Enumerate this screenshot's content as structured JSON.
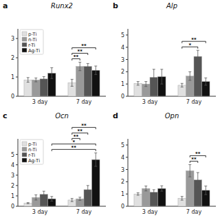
{
  "chart_data": [
    {
      "type": "bar",
      "title": "Runx2",
      "panel_label": "a",
      "categories": [
        "3 day",
        "7 day"
      ],
      "series": [
        {
          "name": "p-Ti",
          "color": "#e0e0e0",
          "values": [
            0.85,
            0.7
          ],
          "errors": [
            0.12,
            0.18
          ]
        },
        {
          "name": "n-Ti",
          "color": "#999999",
          "values": [
            0.85,
            1.55
          ],
          "errors": [
            0.1,
            0.22
          ]
        },
        {
          "name": "r-Ti",
          "color": "#555555",
          "values": [
            0.9,
            1.55
          ],
          "errors": [
            0.12,
            0.15
          ]
        },
        {
          "name": "Ag-Ti",
          "color": "#111111",
          "values": [
            1.2,
            1.35
          ],
          "errors": [
            0.28,
            0.22
          ]
        }
      ],
      "ylim": [
        0,
        3.5
      ],
      "yticks": [
        0,
        1,
        2,
        3
      ],
      "grid": false,
      "legend": "upper left",
      "annotations": [
        {
          "text": "**",
          "from": {
            "series": 0,
            "category": 1
          },
          "to": {
            "series": 1,
            "category": 1
          }
        },
        {
          "text": "**",
          "from": {
            "series": 0,
            "category": 1
          },
          "to": {
            "series": 2,
            "category": 1
          }
        },
        {
          "text": "**",
          "from": {
            "series": 0,
            "category": 1
          },
          "to": {
            "series": 3,
            "category": 1
          }
        }
      ]
    },
    {
      "type": "bar",
      "title": "Alp",
      "panel_label": "b",
      "categories": [
        "3 day",
        "7 day"
      ],
      "series": [
        {
          "name": "p-Ti",
          "color": "#e0e0e0",
          "values": [
            1.05,
            0.9
          ],
          "errors": [
            0.15,
            0.15
          ]
        },
        {
          "name": "n-Ti",
          "color": "#999999",
          "values": [
            1.0,
            1.65
          ],
          "errors": [
            0.2,
            0.35
          ]
        },
        {
          "name": "r-Ti",
          "color": "#555555",
          "values": [
            1.55,
            3.25
          ],
          "errors": [
            0.65,
            0.5
          ]
        },
        {
          "name": "Ag-Ti",
          "color": "#111111",
          "values": [
            1.6,
            1.2
          ],
          "errors": [
            0.6,
            0.3
          ]
        }
      ],
      "ylim": [
        0,
        5.5
      ],
      "yticks": [
        0,
        1,
        2,
        3,
        4,
        5
      ],
      "grid": false,
      "annotations": [
        {
          "text": "*",
          "from": {
            "series": 0,
            "category": 1
          },
          "to": {
            "series": 2,
            "category": 1
          }
        },
        {
          "text": "**",
          "from": {
            "series": 0,
            "category": 1
          },
          "to": {
            "series": 3,
            "category": 1
          }
        }
      ]
    },
    {
      "type": "bar",
      "title": "Ocn",
      "panel_label": "c",
      "categories": [
        "3 day",
        "7 day"
      ],
      "series": [
        {
          "name": "p-Ti",
          "color": "#e0e0e0",
          "values": [
            0.3,
            0.6
          ],
          "errors": [
            0.05,
            0.15
          ]
        },
        {
          "name": "n-Ti",
          "color": "#999999",
          "values": [
            0.85,
            0.72
          ],
          "errors": [
            0.25,
            0.15
          ]
        },
        {
          "name": "r-Ti",
          "color": "#555555",
          "values": [
            1.15,
            1.6
          ],
          "errors": [
            0.3,
            0.4
          ]
        },
        {
          "name": "Ag-Ti",
          "color": "#111111",
          "values": [
            0.72,
            4.5
          ],
          "errors": [
            0.22,
            0.65
          ]
        }
      ],
      "ylim": [
        0,
        6.5
      ],
      "yticks": [
        0,
        1,
        2,
        3,
        4,
        5
      ],
      "grid": false,
      "legend": "upper left",
      "annotations": [
        {
          "text": "**",
          "from": {
            "series": 3,
            "category": 0
          },
          "to": {
            "series": 3,
            "category": 1
          }
        },
        {
          "text": "*",
          "from": {
            "series": 3,
            "category": 0
          },
          "to": {
            "series": 3,
            "category": 1
          }
        },
        {
          "text": "**",
          "from": {
            "series": 0,
            "category": 1
          },
          "to": {
            "series": 1,
            "category": 1
          }
        },
        {
          "text": "**",
          "from": {
            "series": 0,
            "category": 1
          },
          "to": {
            "series": 2,
            "category": 1
          }
        },
        {
          "text": "**",
          "from": {
            "series": 0,
            "category": 1
          },
          "to": {
            "series": 3,
            "category": 1
          }
        }
      ]
    },
    {
      "type": "bar",
      "title": "Opn",
      "panel_label": "d",
      "categories": [
        "3 day",
        "7 day"
      ],
      "series": [
        {
          "name": "p-Ti",
          "color": "#e0e0e0",
          "values": [
            1.0,
            0.65
          ],
          "errors": [
            0.1,
            0.15
          ]
        },
        {
          "name": "n-Ti",
          "color": "#999999",
          "values": [
            1.45,
            2.9
          ],
          "errors": [
            0.2,
            0.5
          ]
        },
        {
          "name": "r-Ti",
          "color": "#555555",
          "values": [
            1.15,
            2.15
          ],
          "errors": [
            0.2,
            0.6
          ]
        },
        {
          "name": "Ag-Ti",
          "color": "#111111",
          "values": [
            1.45,
            1.3
          ],
          "errors": [
            0.22,
            0.35
          ]
        }
      ],
      "ylim": [
        0,
        5.5
      ],
      "yticks": [
        0,
        1,
        2,
        3,
        4,
        5
      ],
      "grid": false,
      "annotations": [
        {
          "text": "**",
          "from": {
            "series": 1,
            "category": 1
          },
          "to": {
            "series": 2,
            "category": 1
          }
        },
        {
          "text": "**",
          "from": {
            "series": 1,
            "category": 1
          },
          "to": {
            "series": 3,
            "category": 1
          }
        }
      ]
    }
  ]
}
